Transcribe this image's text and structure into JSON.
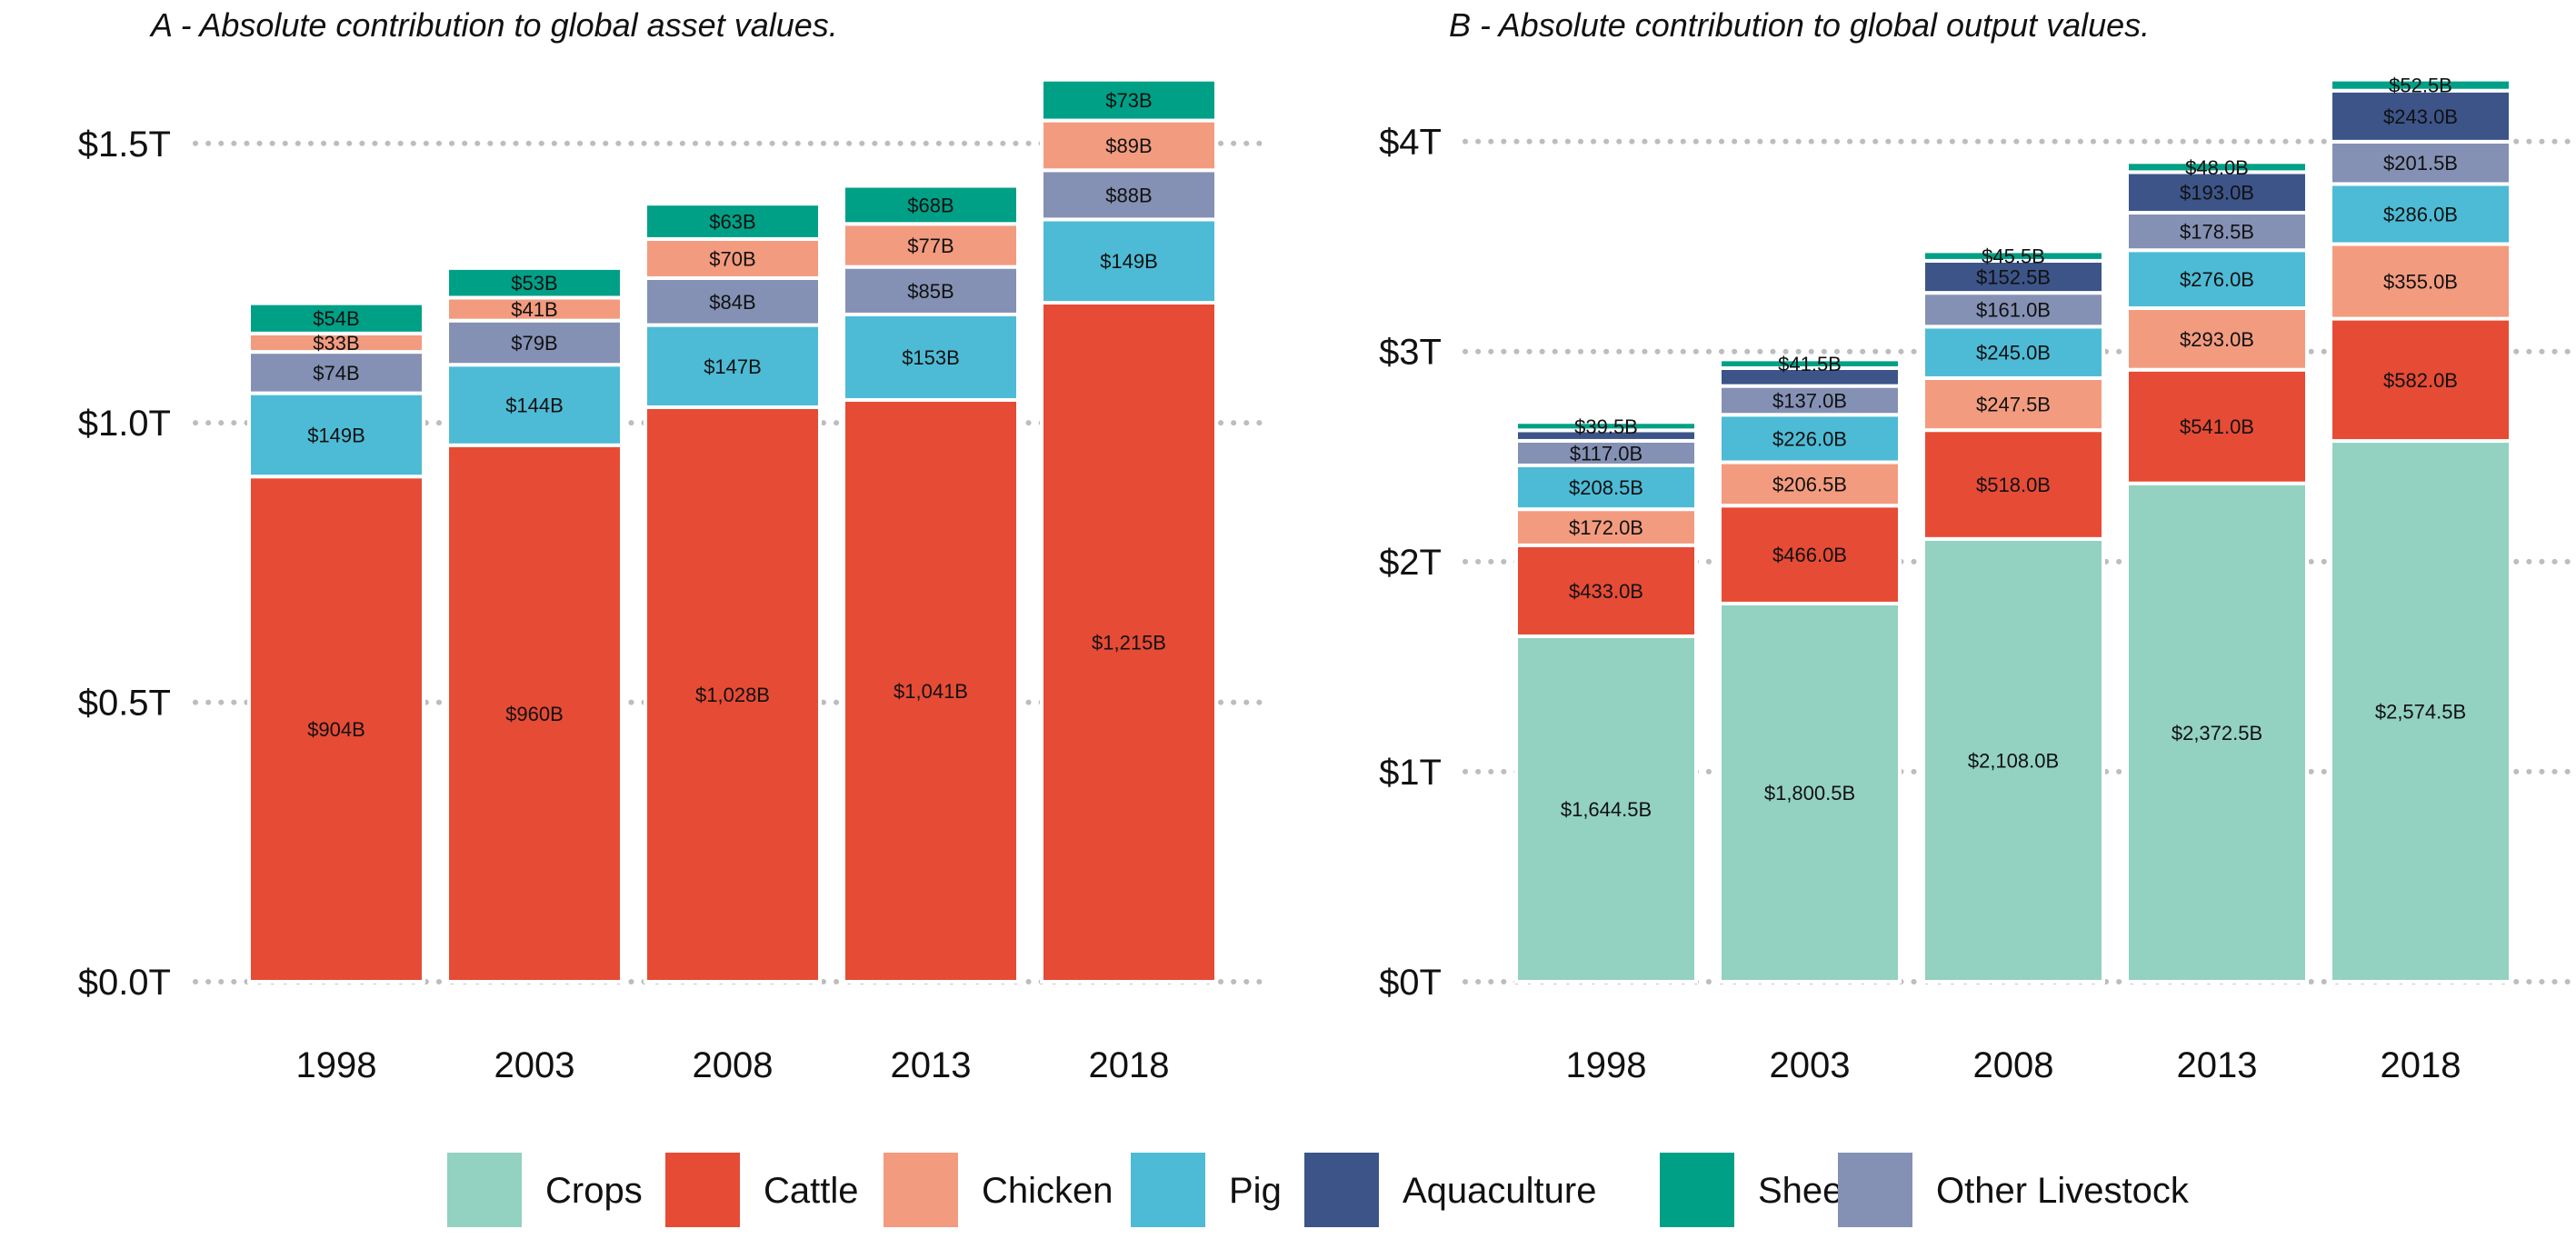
{
  "colors": {
    "Crops": "#93d1c0",
    "Cattle": "#e64b35",
    "Chicken": "#f39b7f",
    "Pig": "#4dbbd5",
    "Aquaculture": "#3c5488",
    "Sheep": "#00a087",
    "Other Livestock": "#8491b4"
  },
  "legend": {
    "items": [
      "Crops",
      "Cattle",
      "Chicken",
      "Pig",
      "Aquaculture",
      "Sheep",
      "Other Livestock"
    ]
  },
  "chart_data": [
    {
      "type": "bar",
      "stacked": true,
      "title": "A - Absolute contribution to global asset values.",
      "categories": [
        "1998",
        "2003",
        "2008",
        "2013",
        "2018"
      ],
      "unit": "billion USD",
      "ylim": [
        0,
        1620
      ],
      "yticks": [
        0,
        500,
        1000,
        1500
      ],
      "ytick_labels": [
        "$0.0T",
        "$0.5T",
        "$1.0T",
        "$1.5T"
      ],
      "grid": "horizontal dotted",
      "stack_order": [
        "Cattle",
        "Pig",
        "Other Livestock",
        "Chicken",
        "Sheep"
      ],
      "series": [
        {
          "name": "Cattle",
          "values": [
            904,
            960,
            1028,
            1041,
            1215
          ],
          "labels": [
            "$904B",
            "$960B",
            "$1,028B",
            "$1,041B",
            "$1,215B"
          ]
        },
        {
          "name": "Pig",
          "values": [
            149,
            144,
            147,
            153,
            149
          ],
          "labels": [
            "$149B",
            "$144B",
            "$147B",
            "$153B",
            "$149B"
          ]
        },
        {
          "name": "Other Livestock",
          "values": [
            74,
            79,
            84,
            85,
            88
          ],
          "labels": [
            "$74B",
            "$79B",
            "$84B",
            "$85B",
            "$88B"
          ]
        },
        {
          "name": "Chicken",
          "values": [
            33,
            41,
            70,
            77,
            89
          ],
          "labels": [
            "$33B",
            "$41B",
            "$70B",
            "$77B",
            "$89B"
          ]
        },
        {
          "name": "Sheep",
          "values": [
            54,
            53,
            63,
            68,
            73
          ],
          "labels": [
            "$54B",
            "$53B",
            "$63B",
            "$68B",
            "$73B"
          ]
        }
      ]
    },
    {
      "type": "bar",
      "stacked": true,
      "title": "B - Absolute contribution to global output values.",
      "categories": [
        "1998",
        "2003",
        "2008",
        "2013",
        "2018"
      ],
      "unit": "billion USD",
      "ylim": [
        0,
        4310
      ],
      "yticks": [
        0,
        1000,
        2000,
        3000,
        4000
      ],
      "ytick_labels": [
        "$0T",
        "$1T",
        "$2T",
        "$3T",
        "$4T"
      ],
      "grid": "horizontal dotted",
      "stack_order": [
        "Crops",
        "Cattle",
        "Chicken",
        "Pig",
        "Other Livestock",
        "Aquaculture",
        "Sheep"
      ],
      "series": [
        {
          "name": "Crops",
          "values": [
            1644.5,
            1800.5,
            2108.0,
            2372.5,
            2574.5
          ],
          "labels": [
            "$1,644.5B",
            "$1,800.5B",
            "$2,108.0B",
            "$2,372.5B",
            "$2,574.5B"
          ]
        },
        {
          "name": "Cattle",
          "values": [
            433.0,
            466.0,
            518.0,
            541.0,
            582.0
          ],
          "labels": [
            "$433.0B",
            "$466.0B",
            "$518.0B",
            "$541.0B",
            "$582.0B"
          ]
        },
        {
          "name": "Chicken",
          "values": [
            172.0,
            206.5,
            247.5,
            293.0,
            355.0
          ],
          "labels": [
            "$172.0B",
            "$206.5B",
            "$247.5B",
            "$293.0B",
            "$355.0B"
          ]
        },
        {
          "name": "Pig",
          "values": [
            208.5,
            226.0,
            245.0,
            276.0,
            286.0
          ],
          "labels": [
            "$208.5B",
            "$226.0B",
            "$245.0B",
            "$276.0B",
            "$286.0B"
          ]
        },
        {
          "name": "Other Livestock",
          "values": [
            117.0,
            137.0,
            161.0,
            178.5,
            201.5
          ],
          "labels": [
            "$117.0B",
            "$137.0B",
            "$161.0B",
            "$178.5B",
            "$201.5B"
          ]
        },
        {
          "name": "Aquaculture",
          "values": [
            50,
            85,
            152.5,
            193.0,
            243.0
          ],
          "labels": [
            "",
            "",
            "$152.5B",
            "$193.0B",
            "$243.0B"
          ]
        },
        {
          "name": "Sheep",
          "values": [
            39.5,
            41.5,
            45.5,
            48.0,
            52.5
          ],
          "labels": [
            "$39.5B",
            "$41.5B",
            "$45.5B",
            "$48.0B",
            "$52.5B"
          ]
        }
      ]
    }
  ]
}
